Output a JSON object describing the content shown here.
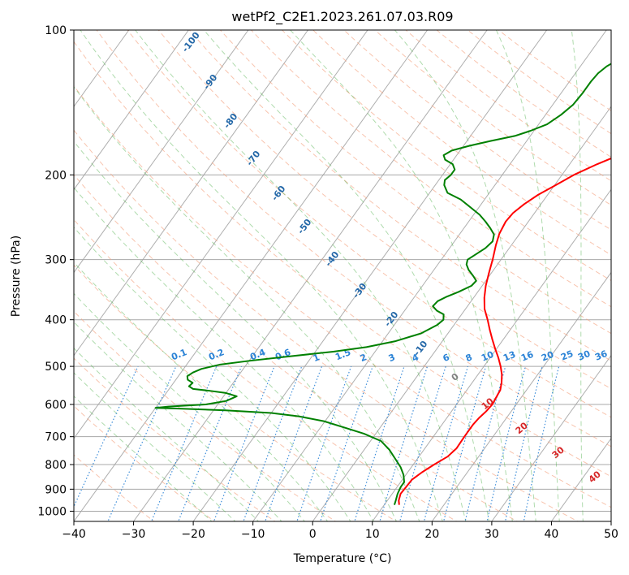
{
  "chart_data": {
    "type": "line",
    "title": "wetPf2_C2E1.2023.261.07.03.R09",
    "xlabel": "Temperature (°C)",
    "ylabel": "Pressure (hPa)",
    "xlim": [
      -40,
      50
    ],
    "ylim": [
      1050,
      100
    ],
    "yscale": "log",
    "grid": true,
    "legend": "none",
    "x_ticks": [
      -40,
      -30,
      -20,
      -10,
      0,
      10,
      20,
      30,
      40,
      50
    ],
    "y_ticks": [
      1000,
      900,
      800,
      700,
      600,
      500,
      400,
      300,
      200,
      100
    ],
    "isotherm_labels": [
      -100,
      -90,
      -80,
      -70,
      -60,
      -50,
      -40,
      -30,
      -20,
      -10
    ],
    "mixing_ratio_labels": [
      "0.1",
      "0.2",
      "0.4",
      "0.6",
      "1",
      "1.5",
      "2",
      "3",
      "4",
      "6",
      "8",
      "10",
      "13",
      "16",
      "20",
      "25",
      "30",
      "36"
    ],
    "moist_adiabat_labels": [
      0,
      10,
      20,
      30,
      40
    ],
    "colors": {
      "temperature": "#ff0000",
      "dewpoint": "#008000",
      "dry_adiabat": "#f4a582",
      "moist_adiabat": "#4daf4a",
      "mixing_ratio": "#2b83d6",
      "isotherm_label": "#2468a8",
      "moist_label": "#d62728"
    },
    "series": [
      {
        "id": "temperature",
        "points": [
          [
            12.5,
            970
          ],
          [
            11.9,
            950
          ],
          [
            11.4,
            920
          ],
          [
            11.5,
            890
          ],
          [
            11.6,
            860
          ],
          [
            12.4,
            830
          ],
          [
            13.5,
            800
          ],
          [
            14.8,
            770
          ],
          [
            15.3,
            740
          ],
          [
            15.2,
            700
          ],
          [
            15.2,
            680
          ],
          [
            15.2,
            660
          ],
          [
            15.4,
            640
          ],
          [
            15.8,
            620
          ],
          [
            16.0,
            600
          ],
          [
            15.8,
            580
          ],
          [
            15.6,
            560
          ],
          [
            14.9,
            540
          ],
          [
            14.0,
            520
          ],
          [
            12.8,
            500
          ],
          [
            11.4,
            480
          ],
          [
            9.8,
            460
          ],
          [
            8.2,
            440
          ],
          [
            6.6,
            420
          ],
          [
            5.0,
            400
          ],
          [
            3.2,
            380
          ],
          [
            1.8,
            360
          ],
          [
            0.6,
            340
          ],
          [
            -0.4,
            320
          ],
          [
            -1.4,
            300
          ],
          [
            -2.6,
            280
          ],
          [
            -3.4,
            265
          ],
          [
            -3.8,
            250
          ],
          [
            -3.6,
            240
          ],
          [
            -2.8,
            230
          ],
          [
            -1.6,
            220
          ],
          [
            0.2,
            210
          ],
          [
            2.0,
            200
          ],
          [
            4.6,
            190
          ],
          [
            7.8,
            180
          ],
          [
            10.4,
            170
          ],
          [
            12.6,
            160
          ],
          [
            14.6,
            150
          ],
          [
            16.2,
            140
          ],
          [
            17.4,
            130
          ],
          [
            18.6,
            125
          ],
          [
            19.0,
            120
          ],
          [
            19.0,
            115
          ],
          [
            18.6,
            110
          ],
          [
            18.6,
            105
          ],
          [
            19.3,
            100
          ]
        ]
      },
      {
        "id": "dewpoint",
        "points": [
          [
            11.7,
            970
          ],
          [
            11.4,
            950
          ],
          [
            10.9,
            920
          ],
          [
            10.6,
            890
          ],
          [
            10.6,
            870
          ],
          [
            9.6,
            840
          ],
          [
            8.2,
            810
          ],
          [
            6.4,
            780
          ],
          [
            4.2,
            745
          ],
          [
            1.8,
            715
          ],
          [
            -2.0,
            690
          ],
          [
            -6.0,
            670
          ],
          [
            -10.2,
            650
          ],
          [
            -15.0,
            635
          ],
          [
            -20.0,
            625
          ],
          [
            -28.0,
            617
          ],
          [
            -36.0,
            612
          ],
          [
            -40.0,
            610
          ],
          [
            -38.0,
            606
          ],
          [
            -32.0,
            600
          ],
          [
            -29.0,
            590
          ],
          [
            -27.8,
            577
          ],
          [
            -30.0,
            568
          ],
          [
            -33.0,
            562
          ],
          [
            -36.0,
            557
          ],
          [
            -37.0,
            550
          ],
          [
            -36.8,
            541
          ],
          [
            -38.0,
            533
          ],
          [
            -38.5,
            524
          ],
          [
            -38.0,
            515
          ],
          [
            -37.0,
            506
          ],
          [
            -34.5,
            496
          ],
          [
            -30.0,
            487
          ],
          [
            -24.0,
            477
          ],
          [
            -17.0,
            466
          ],
          [
            -12.0,
            456
          ],
          [
            -7.8,
            443
          ],
          [
            -4.5,
            427
          ],
          [
            -2.8,
            410
          ],
          [
            -2.4,
            400
          ],
          [
            -3.0,
            390
          ],
          [
            -4.6,
            383
          ],
          [
            -5.8,
            375
          ],
          [
            -5.6,
            366
          ],
          [
            -4.6,
            358
          ],
          [
            -3.2,
            350
          ],
          [
            -1.8,
            340
          ],
          [
            -1.6,
            332
          ],
          [
            -2.6,
            325
          ],
          [
            -4.2,
            315
          ],
          [
            -5.2,
            307
          ],
          [
            -5.6,
            300
          ],
          [
            -4.8,
            292
          ],
          [
            -4.0,
            284
          ],
          [
            -3.6,
            275
          ],
          [
            -4.2,
            266
          ],
          [
            -5.6,
            258
          ],
          [
            -7.2,
            250
          ],
          [
            -9.0,
            242
          ],
          [
            -11.0,
            235
          ],
          [
            -14.0,
            225
          ],
          [
            -17.0,
            218
          ],
          [
            -18.5,
            210
          ],
          [
            -19.0,
            205
          ],
          [
            -18.6,
            200
          ],
          [
            -18.6,
            195
          ],
          [
            -19.6,
            190
          ],
          [
            -21.4,
            186
          ],
          [
            -22.2,
            182
          ],
          [
            -21.4,
            178
          ],
          [
            -19.0,
            174
          ],
          [
            -16.0,
            170
          ],
          [
            -12.6,
            166
          ],
          [
            -10.6,
            162
          ],
          [
            -8.6,
            157
          ],
          [
            -7.4,
            150
          ],
          [
            -6.6,
            143
          ],
          [
            -6.4,
            135
          ],
          [
            -6.4,
            128
          ],
          [
            -6.2,
            123
          ],
          [
            -5.6,
            119
          ],
          [
            -4.4,
            115
          ],
          [
            -3.0,
            111
          ],
          [
            -1.4,
            107
          ],
          [
            0.4,
            103
          ],
          [
            1.8,
            100
          ]
        ]
      }
    ]
  }
}
